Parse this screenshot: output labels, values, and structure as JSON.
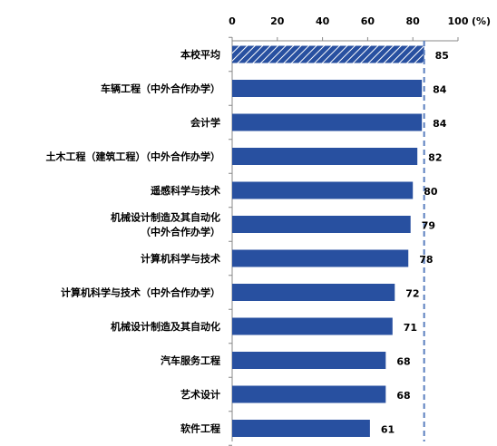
{
  "chart_data": {
    "type": "bar",
    "orientation": "horizontal",
    "unit_label": "(%)",
    "xlim": [
      0,
      100
    ],
    "ticks": [
      "0",
      "20",
      "40",
      "60",
      "80",
      "100"
    ],
    "reference_line": 85,
    "categories": [
      [
        "本校平均"
      ],
      [
        "车辆工程（中外合作办学）"
      ],
      [
        "会计学"
      ],
      [
        "土木工程（建筑工程）（中外合作办学）"
      ],
      [
        "遥感科学与技术"
      ],
      [
        "机械设计制造及其自动化",
        "（中外合作办学）"
      ],
      [
        "计算机科学与技术"
      ],
      [
        "计算机科学与技术（中外合作办学）"
      ],
      [
        "机械设计制造及其自动化"
      ],
      [
        "汽车服务工程"
      ],
      [
        "艺术设计"
      ],
      [
        "软件工程"
      ]
    ],
    "values": [
      85,
      84,
      84,
      82,
      80,
      79,
      78,
      72,
      71,
      68,
      68,
      61
    ],
    "value_labels": [
      "85",
      "84",
      "84",
      "82",
      "80",
      "79",
      "78",
      "72",
      "71",
      "68",
      "68",
      "61"
    ],
    "highlight_index": 0,
    "colors": {
      "bar": "#2850A0",
      "highlight_stripe": "#FFFFFF",
      "reference_line": "#5B7FBF",
      "axis": "#888888"
    }
  }
}
